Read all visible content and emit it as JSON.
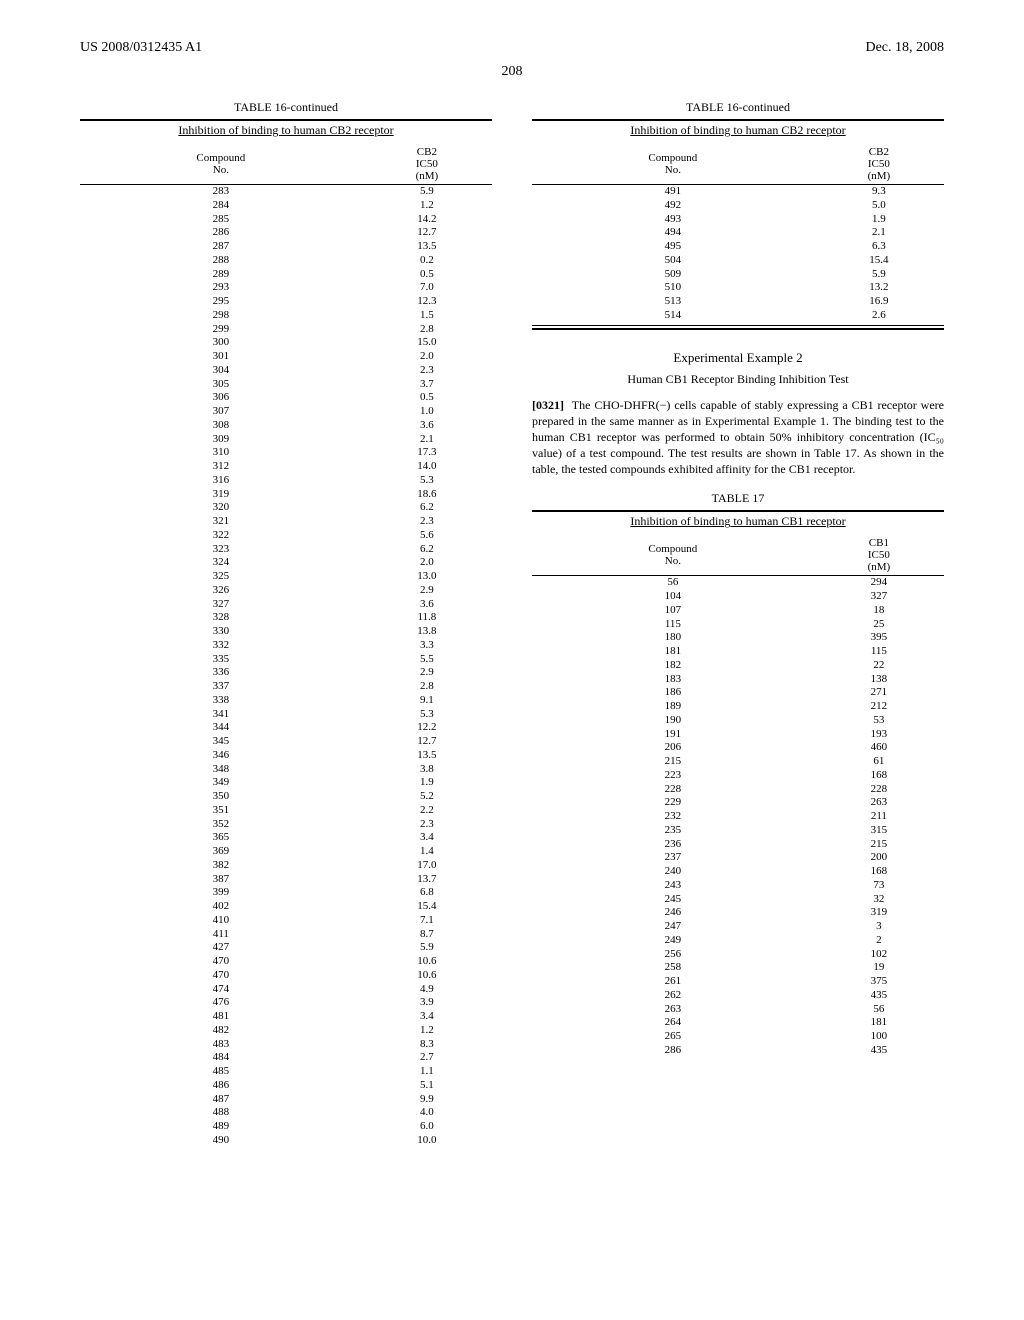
{
  "header": {
    "left": "US 2008/0312435 A1",
    "right": "Dec. 18, 2008"
  },
  "page_number": "208",
  "table16_left": {
    "title": "TABLE 16-continued",
    "subtitle": "Inhibition of binding to human CB2 receptor",
    "col1_header_line1": "Compound",
    "col1_header_line2": "No.",
    "col2_header_line1": "CB2",
    "col2_header_line2": "IC50",
    "col2_header_line3": "(nM)",
    "rows": [
      {
        "c": "283",
        "v": "5.9"
      },
      {
        "c": "284",
        "v": "1.2"
      },
      {
        "c": "285",
        "v": "14.2"
      },
      {
        "c": "286",
        "v": "12.7"
      },
      {
        "c": "287",
        "v": "13.5"
      },
      {
        "c": "288",
        "v": "0.2"
      },
      {
        "c": "289",
        "v": "0.5"
      },
      {
        "c": "293",
        "v": "7.0"
      },
      {
        "c": "295",
        "v": "12.3"
      },
      {
        "c": "298",
        "v": "1.5"
      },
      {
        "c": "299",
        "v": "2.8"
      },
      {
        "c": "300",
        "v": "15.0"
      },
      {
        "c": "301",
        "v": "2.0"
      },
      {
        "c": "304",
        "v": "2.3"
      },
      {
        "c": "305",
        "v": "3.7"
      },
      {
        "c": "306",
        "v": "0.5"
      },
      {
        "c": "307",
        "v": "1.0"
      },
      {
        "c": "308",
        "v": "3.6"
      },
      {
        "c": "309",
        "v": "2.1"
      },
      {
        "c": "310",
        "v": "17.3"
      },
      {
        "c": "312",
        "v": "14.0"
      },
      {
        "c": "316",
        "v": "5.3"
      },
      {
        "c": "319",
        "v": "18.6"
      },
      {
        "c": "320",
        "v": "6.2"
      },
      {
        "c": "321",
        "v": "2.3"
      },
      {
        "c": "322",
        "v": "5.6"
      },
      {
        "c": "323",
        "v": "6.2"
      },
      {
        "c": "324",
        "v": "2.0"
      },
      {
        "c": "325",
        "v": "13.0"
      },
      {
        "c": "326",
        "v": "2.9"
      },
      {
        "c": "327",
        "v": "3.6"
      },
      {
        "c": "328",
        "v": "11.8"
      },
      {
        "c": "330",
        "v": "13.8"
      },
      {
        "c": "332",
        "v": "3.3"
      },
      {
        "c": "335",
        "v": "5.5"
      },
      {
        "c": "336",
        "v": "2.9"
      },
      {
        "c": "337",
        "v": "2.8"
      },
      {
        "c": "338",
        "v": "9.1"
      },
      {
        "c": "341",
        "v": "5.3"
      },
      {
        "c": "344",
        "v": "12.2"
      },
      {
        "c": "345",
        "v": "12.7"
      },
      {
        "c": "346",
        "v": "13.5"
      },
      {
        "c": "348",
        "v": "3.8"
      },
      {
        "c": "349",
        "v": "1.9"
      },
      {
        "c": "350",
        "v": "5.2"
      },
      {
        "c": "351",
        "v": "2.2"
      },
      {
        "c": "352",
        "v": "2.3"
      },
      {
        "c": "365",
        "v": "3.4"
      },
      {
        "c": "369",
        "v": "1.4"
      },
      {
        "c": "382",
        "v": "17.0"
      },
      {
        "c": "387",
        "v": "13.7"
      },
      {
        "c": "399",
        "v": "6.8"
      },
      {
        "c": "402",
        "v": "15.4"
      },
      {
        "c": "410",
        "v": "7.1"
      },
      {
        "c": "411",
        "v": "8.7"
      },
      {
        "c": "427",
        "v": "5.9"
      },
      {
        "c": "470",
        "v": "10.6"
      },
      {
        "c": "470",
        "v": "10.6"
      },
      {
        "c": "474",
        "v": "4.9"
      },
      {
        "c": "476",
        "v": "3.9"
      },
      {
        "c": "481",
        "v": "3.4"
      },
      {
        "c": "482",
        "v": "1.2"
      },
      {
        "c": "483",
        "v": "8.3"
      },
      {
        "c": "484",
        "v": "2.7"
      },
      {
        "c": "485",
        "v": "1.1"
      },
      {
        "c": "486",
        "v": "5.1"
      },
      {
        "c": "487",
        "v": "9.9"
      },
      {
        "c": "488",
        "v": "4.0"
      },
      {
        "c": "489",
        "v": "6.0"
      },
      {
        "c": "490",
        "v": "10.0"
      }
    ]
  },
  "table16_right": {
    "title": "TABLE 16-continued",
    "subtitle": "Inhibition of binding to human CB2 receptor",
    "col1_header_line1": "Compound",
    "col1_header_line2": "No.",
    "col2_header_line1": "CB2",
    "col2_header_line2": "IC50",
    "col2_header_line3": "(nM)",
    "rows": [
      {
        "c": "491",
        "v": "9.3"
      },
      {
        "c": "492",
        "v": "5.0"
      },
      {
        "c": "493",
        "v": "1.9"
      },
      {
        "c": "494",
        "v": "2.1"
      },
      {
        "c": "495",
        "v": "6.3"
      },
      {
        "c": "504",
        "v": "15.4"
      },
      {
        "c": "509",
        "v": "5.9"
      },
      {
        "c": "510",
        "v": "13.2"
      },
      {
        "c": "513",
        "v": "16.9"
      },
      {
        "c": "514",
        "v": "2.6"
      }
    ]
  },
  "example2": {
    "heading": "Experimental Example 2",
    "subheading": "Human CB1 Receptor Binding Inhibition Test",
    "para_num": "[0321]",
    "para_text": "The CHO-DHFR(−) cells capable of stably expressing a CB1 receptor were prepared in the same manner as in Experimental Example 1. The binding test to the human CB1 receptor was performed to obtain 50% inhibitory concentration (IC₅₀ value) of a test compound. The test results are shown in Table 17. As shown in the table, the tested compounds exhibited affinity for the CB1 receptor."
  },
  "table17": {
    "title": "TABLE 17",
    "subtitle": "Inhibition of binding to human CB1 receptor",
    "col1_header_line1": "Compound",
    "col1_header_line2": "No.",
    "col2_header_line1": "CB1",
    "col2_header_line2": "IC50",
    "col2_header_line3": "(nM)",
    "rows": [
      {
        "c": "56",
        "v": "294"
      },
      {
        "c": "104",
        "v": "327"
      },
      {
        "c": "107",
        "v": "18"
      },
      {
        "c": "115",
        "v": "25"
      },
      {
        "c": "180",
        "v": "395"
      },
      {
        "c": "181",
        "v": "115"
      },
      {
        "c": "182",
        "v": "22"
      },
      {
        "c": "183",
        "v": "138"
      },
      {
        "c": "186",
        "v": "271"
      },
      {
        "c": "189",
        "v": "212"
      },
      {
        "c": "190",
        "v": "53"
      },
      {
        "c": "191",
        "v": "193"
      },
      {
        "c": "206",
        "v": "460"
      },
      {
        "c": "215",
        "v": "61"
      },
      {
        "c": "223",
        "v": "168"
      },
      {
        "c": "228",
        "v": "228"
      },
      {
        "c": "229",
        "v": "263"
      },
      {
        "c": "232",
        "v": "211"
      },
      {
        "c": "235",
        "v": "315"
      },
      {
        "c": "236",
        "v": "215"
      },
      {
        "c": "237",
        "v": "200"
      },
      {
        "c": "240",
        "v": "168"
      },
      {
        "c": "243",
        "v": "73"
      },
      {
        "c": "245",
        "v": "32"
      },
      {
        "c": "246",
        "v": "319"
      },
      {
        "c": "247",
        "v": "3"
      },
      {
        "c": "249",
        "v": "2"
      },
      {
        "c": "256",
        "v": "102"
      },
      {
        "c": "258",
        "v": "19"
      },
      {
        "c": "261",
        "v": "375"
      },
      {
        "c": "262",
        "v": "435"
      },
      {
        "c": "263",
        "v": "56"
      },
      {
        "c": "264",
        "v": "181"
      },
      {
        "c": "265",
        "v": "100"
      },
      {
        "c": "286",
        "v": "435"
      }
    ]
  }
}
